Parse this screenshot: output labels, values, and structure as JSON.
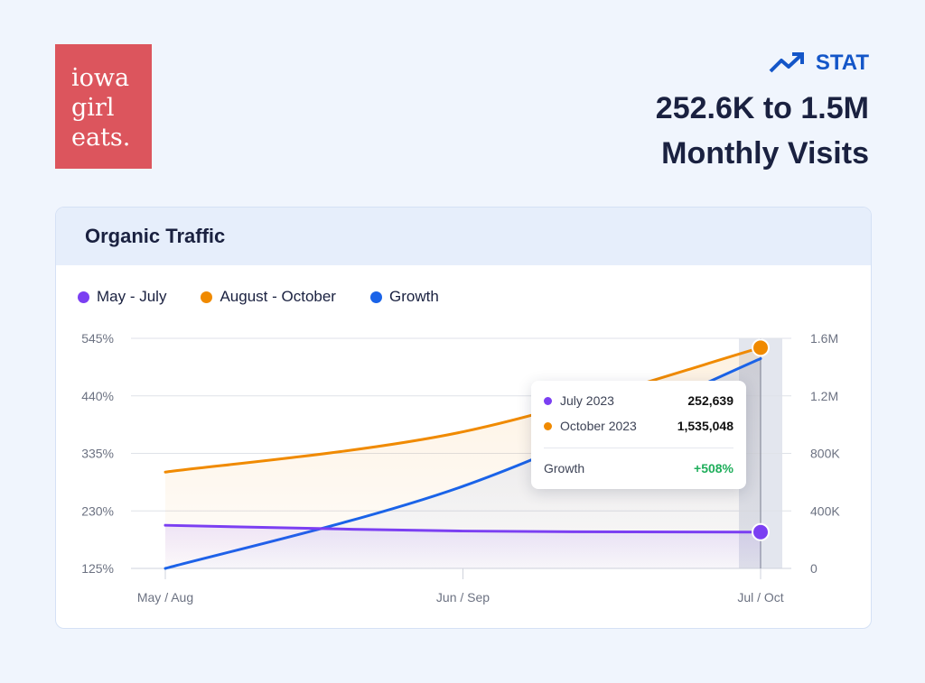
{
  "logo": {
    "lines": [
      "iowa",
      "girl",
      "eats."
    ]
  },
  "stat": {
    "icon": "trending-up-icon",
    "label": "STAT",
    "headline_1": "252.6K to 1.5M",
    "headline_2": "Monthly Visits"
  },
  "card": {
    "title": "Organic Traffic"
  },
  "colors": {
    "purple": "#7b3ff2",
    "orange": "#f08a00",
    "blue": "#1a63e8",
    "green": "#1fae5b",
    "logo": "#dc555d"
  },
  "tooltip": {
    "rows": [
      {
        "label": "July 2023",
        "value": "252,639"
      },
      {
        "label": "October 2023",
        "value": "1,535,048"
      }
    ],
    "growth_label": "Growth",
    "growth_value": "+508%"
  },
  "chart_data": {
    "type": "line",
    "categories": [
      "May / Aug",
      "Jun / Sep",
      "Jul / Oct"
    ],
    "series": [
      {
        "name": "May  - July",
        "axis": "right",
        "color": "#7b3ff2",
        "values": [
          300000,
          260000,
          252639
        ]
      },
      {
        "name": "August - October",
        "axis": "right",
        "color": "#f08a00",
        "values": [
          670000,
          950000,
          1535048
        ]
      },
      {
        "name": "Growth",
        "axis": "left",
        "color": "#1a63e8",
        "values": [
          125,
          275,
          508
        ]
      }
    ],
    "left_axis": {
      "ticks": [
        "545%",
        "440%",
        "335%",
        "230%",
        "125%"
      ],
      "range": [
        125,
        545
      ]
    },
    "right_axis": {
      "ticks": [
        "1.6M",
        "1.2M",
        "800K",
        "400K",
        "0"
      ],
      "range": [
        0,
        1600000
      ]
    },
    "highlighted_category": "Jul / Oct",
    "grid": true,
    "legend": "top-left"
  }
}
